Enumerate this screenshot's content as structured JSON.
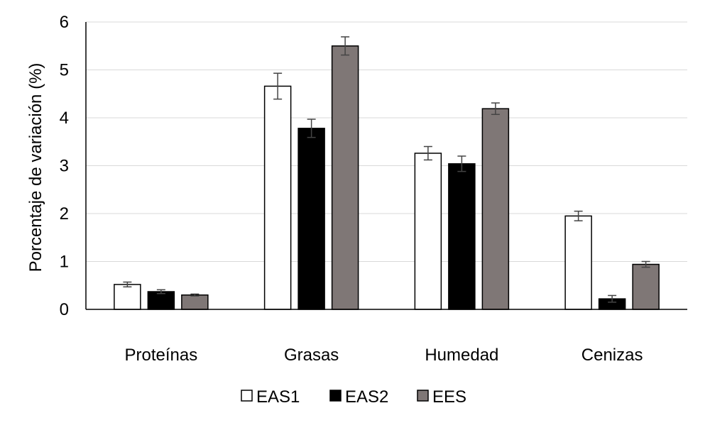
{
  "chart_data": {
    "type": "bar",
    "title": "",
    "xlabel": "",
    "ylabel": "Porcentaje de variación (%)",
    "ylim": [
      0,
      6
    ],
    "yticks": [
      0,
      1,
      2,
      3,
      4,
      5,
      6
    ],
    "grid": true,
    "legend_position": "bottom",
    "categories": [
      "Proteínas",
      "Grasas",
      "Humedad",
      "Cenizas"
    ],
    "series": [
      {
        "name": "EAS1",
        "color": "#ffffff",
        "values": [
          0.52,
          4.66,
          3.26,
          1.95
        ],
        "errors": [
          0.05,
          0.27,
          0.14,
          0.1
        ]
      },
      {
        "name": "EAS2",
        "color": "#000000",
        "values": [
          0.37,
          3.78,
          3.04,
          0.22
        ],
        "errors": [
          0.04,
          0.19,
          0.16,
          0.07
        ]
      },
      {
        "name": "EES",
        "color": "#7f7776",
        "values": [
          0.3,
          5.5,
          4.19,
          0.94
        ],
        "errors": [
          0.02,
          0.19,
          0.12,
          0.06
        ]
      }
    ]
  }
}
